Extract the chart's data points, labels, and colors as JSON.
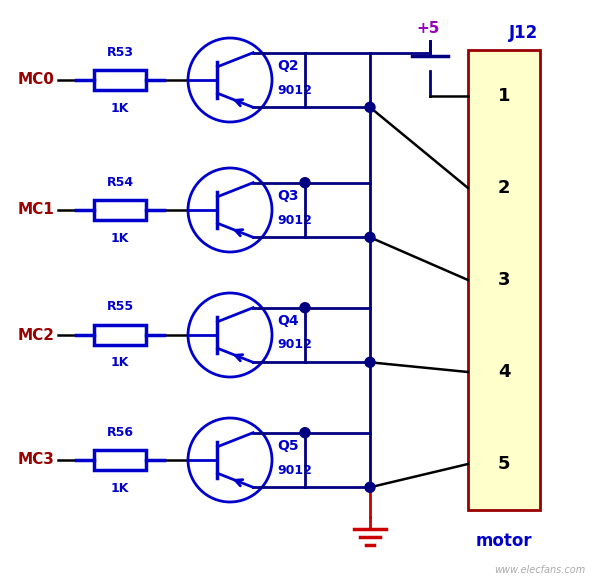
{
  "bg_color": "#ffffff",
  "transistor_color": "#0000cc",
  "wire_dark": "#000080",
  "wire_black": "#000000",
  "mc_color": "#990000",
  "label_blue": "#0000cc",
  "resistor_color": "#0000cc",
  "plus5_color": "#9900bb",
  "motor_box_fill": "#ffffcc",
  "motor_border": "#990000",
  "gnd_color": "#cc0000",
  "dot_color": "#000080",
  "mc_labels": [
    "MC0",
    "MC1",
    "MC2",
    "MC3"
  ],
  "resistor_labels": [
    "R53",
    "R54",
    "R55",
    "R56"
  ],
  "transistor_labels": [
    "Q2",
    "Q3",
    "Q4",
    "Q5"
  ],
  "transistor_type": "9012",
  "connector_label": "J12",
  "connector_pins": [
    "1",
    "2",
    "3",
    "4",
    "5"
  ],
  "connector_sublabel": "motor",
  "resistor_value": "1K",
  "figsize": [
    5.93,
    5.83
  ],
  "dpi": 100
}
